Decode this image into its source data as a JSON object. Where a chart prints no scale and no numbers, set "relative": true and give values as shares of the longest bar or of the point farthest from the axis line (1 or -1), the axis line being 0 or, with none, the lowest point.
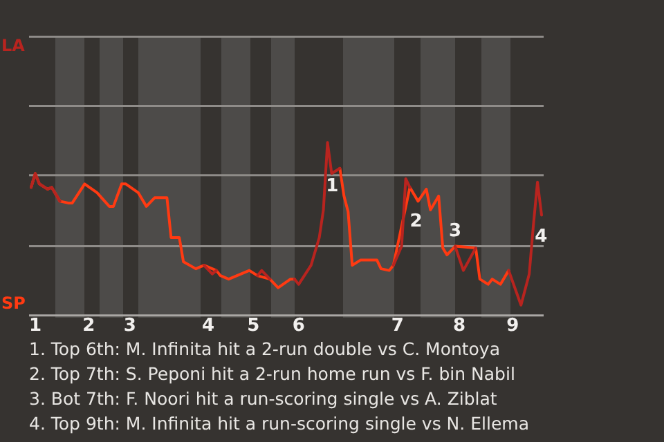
{
  "chart_data": {
    "type": "line",
    "relative": true,
    "categories": [
      null,
      "1",
      null,
      null,
      null,
      null,
      null,
      null,
      null,
      null,
      null,
      null,
      null,
      null,
      "2",
      null,
      null,
      null,
      null,
      null,
      null,
      null,
      null,
      null,
      "3",
      null,
      null,
      null,
      null,
      null,
      null,
      null,
      null,
      null,
      null,
      null,
      null,
      null,
      null,
      null,
      null,
      null,
      null,
      "4",
      null,
      null,
      null,
      null,
      null,
      null,
      null,
      null,
      null,
      null,
      "5",
      null,
      null,
      null,
      null,
      null,
      null,
      null,
      null,
      null,
      null,
      "6",
      null,
      null,
      null,
      null,
      null,
      null,
      null,
      null,
      null,
      null,
      null,
      null,
      null,
      null,
      null,
      null,
      null,
      null,
      null,
      null,
      null,
      null,
      null,
      "7",
      null,
      null,
      null,
      null,
      null,
      null,
      null,
      null,
      null,
      null,
      null,
      null,
      null,
      null,
      "8",
      null,
      null,
      null,
      null,
      null,
      null,
      null,
      null,
      null,
      null,
      null,
      null,
      "9",
      null,
      null,
      null,
      null,
      null,
      null,
      null
    ],
    "series": [
      {
        "color": "#b8241f",
        "values": [
          0.74,
          0.82,
          0.76,
          null,
          0.73,
          0.74,
          null,
          0.66,
          null,
          null,
          null,
          null,
          null,
          null,
          null,
          null,
          null,
          null,
          null,
          null,
          null,
          null,
          null,
          null,
          null,
          null,
          null,
          null,
          null,
          null,
          null,
          null,
          null,
          null,
          null,
          null,
          null,
          null,
          null,
          null,
          null,
          null,
          0.29,
          null,
          0.24,
          0.26,
          null,
          null,
          null,
          null,
          null,
          null,
          null,
          null,
          null,
          0.23,
          0.26,
          null,
          0.21,
          null,
          null,
          null,
          null,
          null,
          0.21,
          0.18,
          null,
          null,
          0.29,
          null,
          0.45,
          0.61,
          1,
          0.82,
          null,
          0.85,
          null,
          null,
          null,
          null,
          null,
          null,
          null,
          null,
          null,
          null,
          null,
          null,
          0.29,
          null,
          0.4,
          0.79,
          0.74,
          null,
          null,
          null,
          null,
          null,
          null,
          null,
          null,
          null,
          null,
          0.4,
          null,
          0.26,
          null,
          null,
          0.39,
          null,
          null,
          null,
          null,
          null,
          null,
          null,
          0.26,
          null,
          null,
          0.06,
          null,
          0.24,
          0.52,
          0.77,
          0.58
        ]
      },
      {
        "color": "#ff3a12",
        "values": [
          0.74,
          0.82,
          0.76,
          null,
          0.73,
          0.74,
          null,
          0.66,
          null,
          0.65,
          0.65,
          null,
          null,
          0.76,
          null,
          null,
          0.71,
          null,
          null,
          0.63,
          0.63,
          null,
          0.76,
          0.76,
          null,
          null,
          0.71,
          null,
          0.63,
          null,
          0.68,
          null,
          null,
          0.68,
          0.45,
          null,
          0.45,
          0.31,
          null,
          null,
          0.27,
          null,
          0.29,
          null,
          null,
          0.26,
          0.23,
          null,
          0.21,
          null,
          null,
          0.24,
          null,
          0.26,
          null,
          0.23,
          null,
          null,
          0.21,
          null,
          0.16,
          null,
          null,
          0.21,
          0.21,
          null,
          null,
          null,
          null,
          null,
          null,
          null,
          null,
          null,
          null,
          0.85,
          0.69,
          0.6,
          0.29,
          null,
          0.32,
          null,
          null,
          null,
          0.32,
          0.27,
          null,
          0.26,
          0.29,
          null,
          null,
          null,
          0.74,
          null,
          0.66,
          null,
          0.73,
          0.61,
          null,
          0.69,
          0.39,
          0.35,
          null,
          0.4,
          null,
          null,
          null,
          null,
          0.39,
          0.21,
          null,
          0.18,
          0.21,
          null,
          0.18,
          null,
          0.26,
          null,
          null,
          null,
          null,
          null,
          null,
          null,
          null
        ]
      }
    ],
    "marker": "none",
    "line_style": "solid",
    "ref_lines": [
      {
        "axis": "y",
        "value": 0.4,
        "color": "#8f8c89"
      },
      {
        "axis": "y",
        "value": 0.81,
        "color": "#8f8c89"
      },
      {
        "axis": "y",
        "value": 1.21,
        "color": "#8f8c89"
      },
      {
        "axis": "y",
        "value": 1.61,
        "color": "#8f8c89"
      }
    ],
    "annotations": [
      "LA",
      "SP",
      "1",
      "2",
      "3",
      "4",
      "1. Top 6th: M. Infinita hit a 2-run double vs C. Montoya",
      "2. Top 7th: S. Peponi hit a 2-run home run vs F. bin Nabil",
      "3. Bot 7th: F. Noori hit a run-scoring single vs A. Ziblat",
      "4. Top 9th: M. Infinita hit a run-scoring single vs N. Ellema"
    ]
  }
}
